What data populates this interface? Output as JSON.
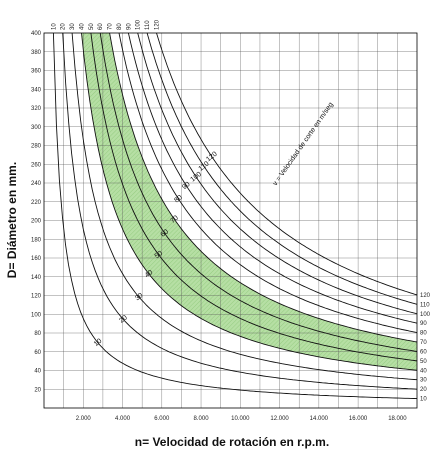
{
  "chart_data": {
    "type": "line",
    "xlabel": "n= Velocidad de rotación en r.p.m.",
    "ylabel": "D= Diámetro en mm.",
    "annotation": "v = Velocidad de corte en m/seg",
    "xlim": [
      0,
      19000
    ],
    "ylim": [
      0,
      400
    ],
    "x_ticks": [
      "2.000",
      "4.000",
      "6.000",
      "8.000",
      "10.000",
      "12.000",
      "14.000",
      "16.000",
      "18.000"
    ],
    "y_ticks": [
      "20",
      "40",
      "60",
      "80",
      "100",
      "120",
      "140",
      "160",
      "180",
      "200",
      "220",
      "240",
      "260",
      "280",
      "300",
      "320",
      "340",
      "360",
      "380",
      "400"
    ],
    "formula": "D = 60000·v / (π·n)",
    "grid": true,
    "shaded_band": {
      "from_v": 40,
      "to_v": 70,
      "color": "#b6dfa4"
    },
    "series": [
      {
        "v": 10,
        "label": "10"
      },
      {
        "v": 20,
        "label": "20"
      },
      {
        "v": 30,
        "label": "30"
      },
      {
        "v": 40,
        "label": "40"
      },
      {
        "v": 50,
        "label": "50"
      },
      {
        "v": 60,
        "label": "60"
      },
      {
        "v": 70,
        "label": "70"
      },
      {
        "v": 80,
        "label": "80"
      },
      {
        "v": 90,
        "label": "90"
      },
      {
        "v": 100,
        "label": "100"
      },
      {
        "v": 110,
        "label": "110"
      },
      {
        "v": 120,
        "label": "120"
      }
    ],
    "top_labels": [
      "10",
      "20",
      "30",
      "40",
      "50",
      "60",
      "70",
      "80",
      "90",
      "100",
      "110",
      "120"
    ],
    "right_labels": [
      "120",
      "110",
      "100",
      "90",
      "80",
      "70",
      "60",
      "50",
      "40",
      "30",
      "20",
      "10"
    ]
  }
}
